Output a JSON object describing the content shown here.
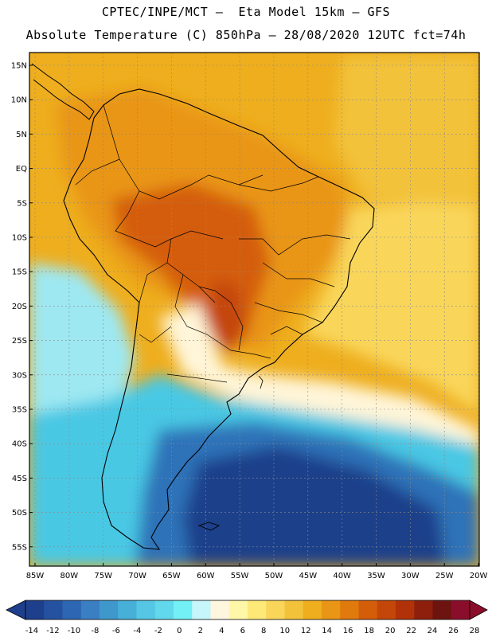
{
  "header": {
    "line1": "CPTEC/INPE/MCT –  Eta Model 15km – GFS",
    "line2": "Absolute Temperature (C) 850hPa – 28/08/2020 12UTC fct=74h"
  },
  "axes": {
    "lat_labels": [
      "15N",
      "10N",
      "5N",
      "EQ",
      "5S",
      "10S",
      "15S",
      "20S",
      "25S",
      "30S",
      "35S",
      "40S",
      "45S",
      "50S",
      "55S"
    ],
    "lon_labels": [
      "85W",
      "80W",
      "75W",
      "70W",
      "65W",
      "60W",
      "55W",
      "50W",
      "45W",
      "40W",
      "35W",
      "30W",
      "25W",
      "20W"
    ]
  },
  "colorbar": {
    "ticks": [
      "-14",
      "-12",
      "-10",
      "-8",
      "-6",
      "-4",
      "-2",
      "0",
      "2",
      "4",
      "6",
      "8",
      "10",
      "12",
      "14",
      "16",
      "18",
      "20",
      "22",
      "24",
      "26",
      "28"
    ],
    "colors": [
      "#1e3f8c",
      "#2452a0",
      "#2d66b2",
      "#3a7fc2",
      "#3f98cc",
      "#46b0d8",
      "#55c7e4",
      "#62d8ec",
      "#72f0f5",
      "#c6f5fa",
      "#fff6df",
      "#fff7a8",
      "#fde978",
      "#f9d65a",
      "#f3c23b",
      "#eeae1e",
      "#e99515",
      "#e07a0c",
      "#d45d0a",
      "#c44609",
      "#b13208",
      "#8e1f0c",
      "#6e1410",
      "#8a0e2c"
    ]
  },
  "palette": {
    "deep_blue": "#1c3f8a",
    "blue": "#2f72b8",
    "cyan": "#48c8e4",
    "light_cyan": "#9ee8f2",
    "pale": "#fff5d8",
    "yellow": "#f9dc6a",
    "gold": "#f2c040",
    "orange": "#e9a028",
    "dark_orange": "#de8a1e",
    "red_orange": "#d06a12",
    "brown": "#a8400c"
  }
}
